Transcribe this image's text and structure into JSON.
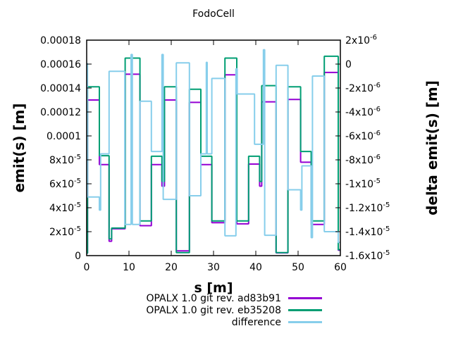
{
  "window": {
    "background": "#ffffff"
  },
  "chart_data": {
    "type": "line",
    "title": "FodoCell",
    "xlabel": "s [m]",
    "ylabel": "emit(s) [m]",
    "y2label": "delta emit(s) [m]",
    "x_range": [
      0,
      60
    ],
    "y_range_left": [
      0,
      0.00018
    ],
    "y_range_right": [
      -1.6e-05,
      2e-06
    ],
    "grid": false,
    "legend_position": "bottom-right-below-plot",
    "x_tick_labels": [
      "0",
      "10",
      "20",
      "30",
      "40",
      "50",
      "60"
    ],
    "y_tick_labels_left": [
      "0.00018",
      "0.00016",
      "0.00014",
      "0.00012",
      "0.0001",
      "8x10^-5",
      "6x10^-5",
      "4x10^-5",
      "2x10^-5",
      "0"
    ],
    "y_tick_labels_right": [
      "2x10^-6",
      "0",
      "-2x10^-6",
      "-4x10^-6",
      "-6x10^-6",
      "-8x10^-6",
      "-1x10^-5",
      "-1.2x10^-5",
      "-1.4x10^-5",
      "-1.6x10^-5"
    ],
    "value_unit": "1e-6 m (steps are [s_start, s_end, value_in_1e-6_m])",
    "series": [
      {
        "name": "OPALX 1.0 git rev. ad83b91",
        "color": "#9400d3",
        "axis": "left",
        "steps": [
          [
            0,
            0.2,
            2
          ],
          [
            0.2,
            3,
            130
          ],
          [
            3,
            5.3,
            76
          ],
          [
            5.3,
            5.9,
            12
          ],
          [
            5.9,
            9.1,
            22.4
          ],
          [
            9.1,
            12.6,
            151.5
          ],
          [
            12.6,
            15.3,
            25
          ],
          [
            15.3,
            17.8,
            76
          ],
          [
            17.8,
            18.4,
            58
          ],
          [
            18.4,
            21.2,
            130
          ],
          [
            21.2,
            24.3,
            4
          ],
          [
            24.3,
            27,
            128
          ],
          [
            27,
            29.6,
            76
          ],
          [
            29.6,
            32.7,
            27.5
          ],
          [
            32.7,
            35.5,
            151
          ],
          [
            35.5,
            38.3,
            26.5
          ],
          [
            38.3,
            40.9,
            76.5
          ],
          [
            40.9,
            41.4,
            58
          ],
          [
            41.4,
            44.8,
            128.5
          ],
          [
            44.8,
            47.6,
            2.3
          ],
          [
            47.6,
            50.6,
            130.5
          ],
          [
            50.6,
            53.1,
            78
          ],
          [
            53.1,
            56.2,
            26
          ],
          [
            56.2,
            59.5,
            153
          ],
          [
            59.5,
            60,
            4.5
          ]
        ]
      },
      {
        "name": "OPALX 1.0 git rev. eb35208",
        "color": "#009e73",
        "axis": "left",
        "steps": [
          [
            0,
            0.2,
            2
          ],
          [
            0.2,
            3,
            141
          ],
          [
            3,
            5.3,
            83.5
          ],
          [
            5.3,
            5.9,
            14
          ],
          [
            5.9,
            9.1,
            23
          ],
          [
            9.1,
            12.6,
            165
          ],
          [
            12.6,
            15.3,
            29
          ],
          [
            15.3,
            17.8,
            83
          ],
          [
            17.8,
            18.4,
            62
          ],
          [
            18.4,
            21.2,
            141
          ],
          [
            21.2,
            24.3,
            2.5
          ],
          [
            24.3,
            27,
            139
          ],
          [
            27,
            29.6,
            83
          ],
          [
            29.6,
            32.7,
            29
          ],
          [
            32.7,
            35.5,
            165
          ],
          [
            35.5,
            38.3,
            29
          ],
          [
            38.3,
            40.9,
            83
          ],
          [
            40.9,
            41.4,
            62
          ],
          [
            41.4,
            44.8,
            142
          ],
          [
            44.8,
            47.6,
            2.5
          ],
          [
            47.6,
            50.6,
            141
          ],
          [
            50.6,
            53.1,
            87
          ],
          [
            53.1,
            56.2,
            29
          ],
          [
            56.2,
            59.5,
            166.5
          ],
          [
            59.5,
            60,
            5
          ]
        ]
      },
      {
        "name": "difference",
        "color": "#87ceeb",
        "axis": "right",
        "steps": [
          [
            0,
            0.2,
            0.05
          ],
          [
            0.2,
            3,
            -11.1
          ],
          [
            3,
            3.3,
            -12.2
          ],
          [
            3.3,
            5.3,
            -7.5
          ],
          [
            5.3,
            9,
            -0.6
          ],
          [
            9,
            10.5,
            -13.4
          ],
          [
            10.5,
            10.8,
            0.8
          ],
          [
            10.8,
            12.6,
            -13.4
          ],
          [
            12.6,
            15.3,
            -3.1
          ],
          [
            15.3,
            17.8,
            -7.3
          ],
          [
            17.8,
            18.1,
            0.8
          ],
          [
            18.1,
            21.2,
            -11.3
          ],
          [
            21.2,
            24.3,
            0.1
          ],
          [
            24.3,
            27,
            -11
          ],
          [
            27,
            28.3,
            -7.5
          ],
          [
            28.3,
            28.5,
            0.15
          ],
          [
            28.5,
            29.6,
            -7.5
          ],
          [
            29.6,
            32.7,
            -1.2
          ],
          [
            32.7,
            35.3,
            -14.35
          ],
          [
            35.3,
            35.6,
            -0.4
          ],
          [
            35.6,
            39.7,
            -2.5
          ],
          [
            39.7,
            41.8,
            -6.7
          ],
          [
            41.8,
            42.1,
            1.2
          ],
          [
            42.1,
            44.8,
            -14.3
          ],
          [
            44.8,
            47.6,
            -0.1
          ],
          [
            47.6,
            50.6,
            -10.5
          ],
          [
            50.6,
            50.9,
            -12.2
          ],
          [
            50.9,
            53.1,
            -8.5
          ],
          [
            53.1,
            53.4,
            -14.5
          ],
          [
            53.4,
            56.2,
            -1.0
          ],
          [
            56.2,
            59.5,
            -14
          ],
          [
            59.5,
            60,
            -14.9
          ]
        ]
      }
    ]
  }
}
